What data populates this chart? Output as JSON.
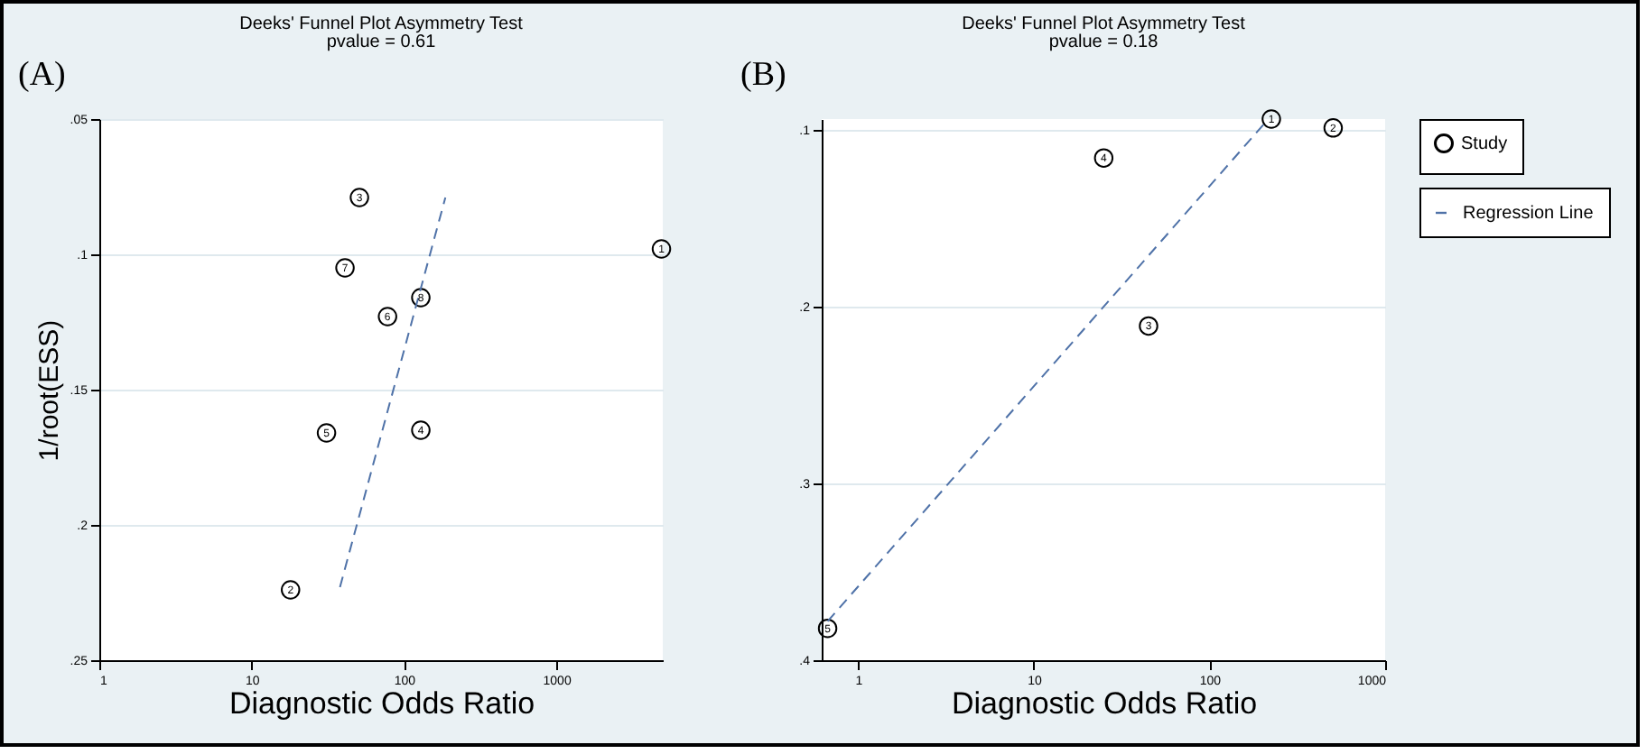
{
  "chart_data": [
    {
      "type": "scatter",
      "title": "Deeks' Funnel Plot Asymmetry Test",
      "subtitle": "pvalue = 0.61",
      "annotations": [
        "(A)",
        {
          "text": "1",
          "x": 4900,
          "y": 0.098
        },
        {
          "text": "2",
          "x": 18,
          "y": 0.224
        },
        {
          "text": "3",
          "x": 51,
          "y": 0.079
        },
        {
          "text": "4",
          "x": 129,
          "y": 0.165
        },
        {
          "text": "5",
          "x": 31,
          "y": 0.166
        },
        {
          "text": "6",
          "x": 78,
          "y": 0.123
        },
        {
          "text": "7",
          "x": 41,
          "y": 0.105
        },
        {
          "text": "8",
          "x": 129,
          "y": 0.116
        }
      ],
      "xlabel": "Diagnostic Odds Ratio",
      "ylabel": "1/root(ESS)",
      "log": "x",
      "xlim": [
        1,
        5000
      ],
      "xticks": [
        1,
        10,
        100,
        1000
      ],
      "ylim": [
        0.25,
        0.05
      ],
      "yticks": [
        {
          "value": 0.05,
          "label": ".05"
        },
        {
          "value": 0.1,
          "label": ".1"
        },
        {
          "value": 0.15,
          "label": ".15"
        },
        {
          "value": 0.2,
          "label": ".2"
        },
        {
          "value": 0.25,
          "label": ".25"
        }
      ],
      "grid": "y",
      "legend": false,
      "series": [
        {
          "marker": "circle",
          "color": "#000000",
          "x": [
            4900,
            18,
            51,
            129,
            31,
            78,
            41,
            129
          ],
          "values": [
            0.098,
            0.224,
            0.079,
            0.165,
            0.166,
            0.123,
            0.105,
            0.116
          ]
        },
        {
          "type": "line",
          "color": "#4f72a8",
          "line_style": "dashed",
          "x": [
            38,
            187
          ],
          "values": [
            0.223,
            0.079
          ]
        }
      ]
    },
    {
      "type": "scatter",
      "title": "Deeks' Funnel Plot Asymmetry Test",
      "subtitle": "pvalue = 0.18",
      "annotations": [
        "(B)",
        {
          "text": "1",
          "x": 225,
          "y": 0.094
        },
        {
          "text": "2",
          "x": 506,
          "y": 0.099
        },
        {
          "text": "3",
          "x": 45,
          "y": 0.211
        },
        {
          "text": "4",
          "x": 25,
          "y": 0.116
        },
        {
          "text": "5",
          "x": 0.67,
          "y": 0.382
        }
      ],
      "xlabel": "Diagnostic Odds Ratio",
      "log": "x",
      "xlim": [
        0.62,
        1000
      ],
      "xticks": [
        1,
        10,
        100,
        1000
      ],
      "ylim": [
        0.4,
        0.094
      ],
      "yticks": [
        {
          "value": 0.1,
          "label": ".1"
        },
        {
          "value": 0.2,
          "label": ".2"
        },
        {
          "value": 0.3,
          "label": ".3"
        },
        {
          "value": 0.4,
          "label": ".4"
        }
      ],
      "grid": "y",
      "legend": "right",
      "series": [
        {
          "marker": "circle",
          "name": "Study",
          "color": "#000000",
          "x": [
            225,
            506,
            45,
            25,
            0.67
          ],
          "values": [
            0.094,
            0.099,
            0.211,
            0.116,
            0.382
          ]
        },
        {
          "type": "line",
          "name": "Regression Line",
          "color": "#4f72a8",
          "line_style": "dashed",
          "x": [
            0.67,
            212
          ],
          "values": [
            0.378,
            0.095
          ]
        }
      ]
    }
  ]
}
